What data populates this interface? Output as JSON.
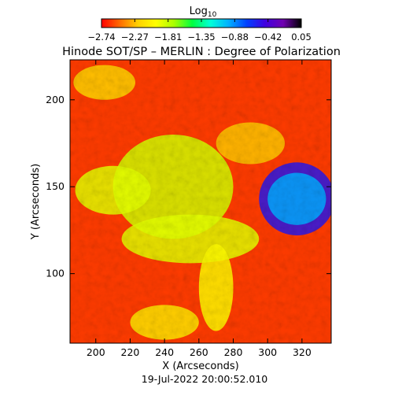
{
  "chart_data": {
    "type": "heatmap",
    "title": "Hinode SOT/SP – MERLIN : Degree of Polarization",
    "xlabel": "X (Arcseconds)",
    "ylabel": "Y (Arcseconds)",
    "xlim": [
      185,
      337
    ],
    "ylim": [
      60,
      223
    ],
    "x_ticks": [
      200,
      220,
      240,
      260,
      280,
      300,
      320
    ],
    "y_ticks": [
      100,
      150,
      200
    ],
    "colorbar": {
      "title_base": "Log",
      "title_sub": "10",
      "tick_labels": [
        "−2.74",
        "−2.27",
        "−1.81",
        "−1.35",
        "−0.88",
        "−0.42",
        "0.05"
      ],
      "range": [
        -2.74,
        0.05
      ],
      "colors": [
        "#ff0000",
        "#ff6a00",
        "#ffd000",
        "#ffff00",
        "#a8ff00",
        "#00ff40",
        "#00ffd8",
        "#00b0ff",
        "#0040ff",
        "#4000e0",
        "#7000b0",
        "#000000"
      ]
    },
    "regions": [
      {
        "x": 317,
        "y": 143,
        "rx": 22,
        "ry": 21,
        "value": -0.55
      },
      {
        "x": 317,
        "y": 143,
        "rx": 17,
        "ry": 15,
        "value": -0.95
      },
      {
        "x": 245,
        "y": 150,
        "rx": 35,
        "ry": 30,
        "value": -1.85
      },
      {
        "x": 210,
        "y": 148,
        "rx": 22,
        "ry": 14,
        "value": -1.9
      },
      {
        "x": 255,
        "y": 120,
        "rx": 40,
        "ry": 14,
        "value": -1.9
      },
      {
        "x": 270,
        "y": 92,
        "rx": 10,
        "ry": 25,
        "value": -2.0
      },
      {
        "x": 240,
        "y": 72,
        "rx": 20,
        "ry": 10,
        "value": -2.1
      },
      {
        "x": 205,
        "y": 210,
        "rx": 18,
        "ry": 10,
        "value": -2.2
      },
      {
        "x": 290,
        "y": 175,
        "rx": 20,
        "ry": 12,
        "value": -2.25
      }
    ],
    "background_value": -2.6,
    "timestamp": "19-Jul-2022 20:00:52.010"
  }
}
